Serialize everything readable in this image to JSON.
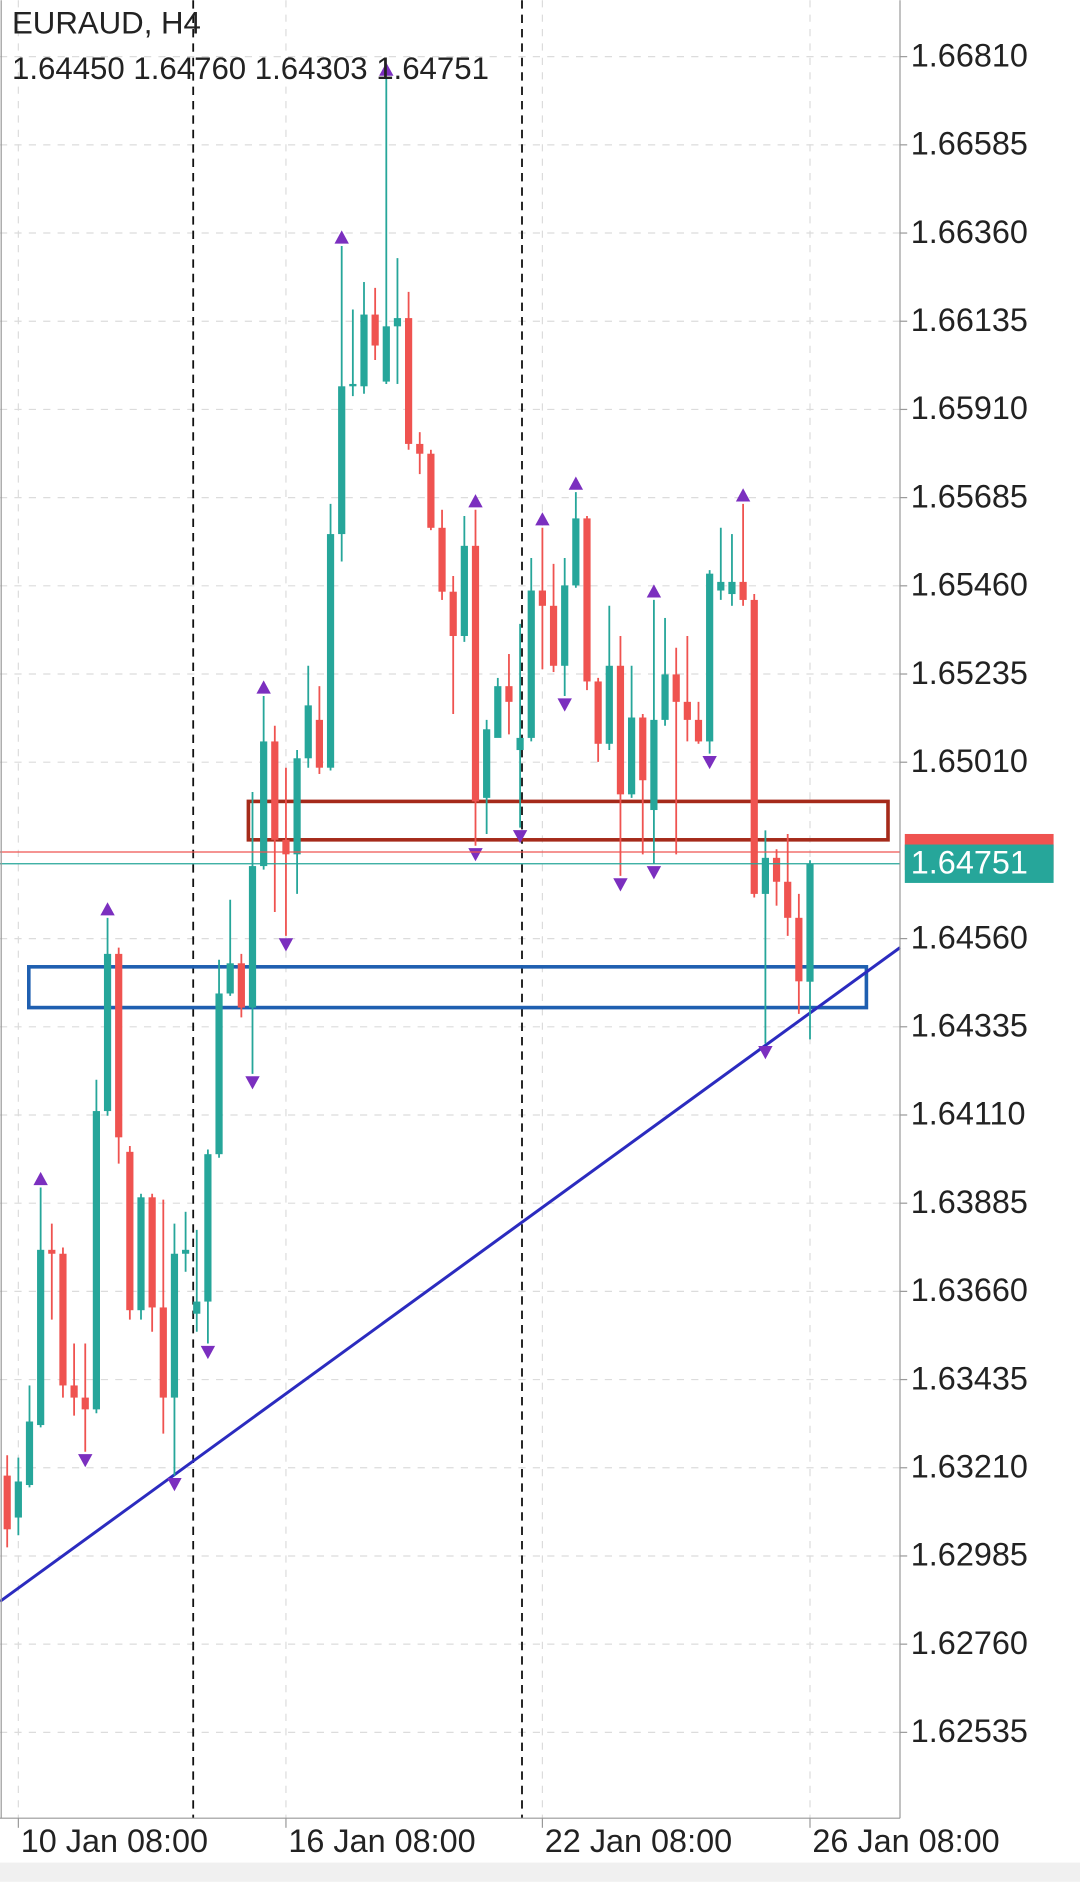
{
  "chart_data": {
    "type": "candlestick",
    "header": {
      "symbol": "EURAUD, H4",
      "ohlc": "1.64450 1.64760 1.64303 1.64751"
    },
    "price_label": "1.64751",
    "up_color": "#26a69a",
    "down_color": "#ef5350",
    "categories": [
      null,
      "10 Jan 08:00",
      null,
      null,
      null,
      null,
      null,
      null,
      null,
      null,
      null,
      null,
      null,
      null,
      null,
      null,
      null,
      null,
      null,
      null,
      null,
      null,
      null,
      null,
      null,
      "16 Jan 08:00",
      null,
      null,
      null,
      null,
      null,
      null,
      null,
      null,
      null,
      null,
      null,
      null,
      null,
      null,
      null,
      null,
      null,
      null,
      null,
      null,
      null,
      null,
      "22 Jan 08:00",
      null,
      null,
      null,
      null,
      null,
      null,
      null,
      null,
      null,
      null,
      null,
      null,
      null,
      null,
      null,
      null,
      null,
      null,
      null,
      null,
      null,
      null,
      null,
      "26 Jan 08:00"
    ],
    "open": [
      1.6319,
      1.63083,
      1.63166,
      1.63319,
      1.63766,
      1.63756,
      1.6342,
      1.63389,
      1.63359,
      1.6412,
      1.64521,
      1.64016,
      1.63612,
      1.639,
      1.63619,
      1.63389,
      1.63756,
      1.63603,
      1.63634,
      1.6401,
      1.6442,
      1.64497,
      1.64384,
      1.64745,
      1.65063,
      1.64812,
      1.64775,
      1.6502,
      1.65118,
      1.64996,
      1.65592,
      1.65969,
      1.65969,
      1.66152,
      1.65981,
      1.66122,
      1.66143,
      1.65822,
      1.65797,
      1.65608,
      1.65445,
      1.65332,
      1.65562,
      1.64919,
      1.65072,
      1.65204,
      1.65041,
      1.65072,
      1.65448,
      1.65409,
      1.65256,
      1.65461,
      1.65632,
      1.65216,
      1.65057,
      1.65256,
      1.64928,
      1.65124,
      1.64888,
      1.65118,
      1.65234,
      1.65164,
      1.65118,
      1.65063,
      1.65448,
      1.65439,
      1.6547,
      1.65424,
      1.64674,
      1.64766,
      1.64705,
      1.64613,
      1.6445
    ],
    "high": [
      1.63242,
      1.63236,
      1.6342,
      1.63925,
      1.63833,
      1.63772,
      1.63527,
      1.63527,
      1.642,
      1.64613,
      1.64537,
      1.64031,
      1.63909,
      1.63909,
      1.63894,
      1.63833,
      1.63863,
      1.63817,
      1.64022,
      1.64506,
      1.64659,
      1.64521,
      1.64934,
      1.65179,
      1.65103,
      1.64996,
      1.65041,
      1.65256,
      1.65204,
      1.65669,
      1.66327,
      1.66165,
      1.66235,
      1.6622,
      1.66755,
      1.66296,
      1.6621,
      1.65852,
      1.65807,
      1.65654,
      1.65485,
      1.65638,
      1.65654,
      1.65118,
      1.65225,
      1.65286,
      1.65363,
      1.65531,
      1.65608,
      1.65516,
      1.65531,
      1.65699,
      1.65638,
      1.65225,
      1.65409,
      1.65332,
      1.65256,
      1.65133,
      1.65424,
      1.65378,
      1.65302,
      1.65332,
      1.65164,
      1.655,
      1.65608,
      1.65592,
      1.65669,
      1.65439,
      1.64836,
      1.64788,
      1.64827,
      1.64674,
      1.6476
    ],
    "low": [
      1.63007,
      1.63038,
      1.6316,
      1.63313,
      1.63588,
      1.63389,
      1.63343,
      1.63251,
      1.63349,
      1.64108,
      1.63986,
      1.63588,
      1.63588,
      1.63557,
      1.63297,
      1.6319,
      1.6371,
      1.63557,
      1.63527,
      1.64001,
      1.64414,
      1.64359,
      1.64215,
      1.64736,
      1.64628,
      1.64567,
      1.64674,
      1.64996,
      1.6498,
      1.64989,
      1.65522,
      1.65944,
      1.6595,
      1.66036,
      1.65975,
      1.65975,
      1.65807,
      1.65745,
      1.65602,
      1.65424,
      1.65133,
      1.65317,
      1.64797,
      1.64827,
      1.65081,
      1.65081,
      1.64843,
      1.65063,
      1.65247,
      1.6524,
      1.65179,
      1.65455,
      1.65194,
      1.65011,
      1.65041,
      1.6472,
      1.64919,
      1.64775,
      1.64751,
      1.65103,
      1.64775,
      1.65063,
      1.65057,
      1.65032,
      1.65424,
      1.65409,
      1.65409,
      1.64665,
      1.64292,
      1.64644,
      1.64567,
      1.64368,
      1.64303
    ],
    "close": [
      1.63053,
      1.63175,
      1.63328,
      1.63766,
      1.63756,
      1.6342,
      1.63389,
      1.63359,
      1.6412,
      1.64521,
      1.64053,
      1.63612,
      1.639,
      1.63619,
      1.63389,
      1.63756,
      1.63766,
      1.63634,
      1.6401,
      1.6442,
      1.64497,
      1.64384,
      1.64745,
      1.65063,
      1.64812,
      1.64775,
      1.6502,
      1.65155,
      1.64996,
      1.65592,
      1.65969,
      1.65975,
      1.66152,
      1.66073,
      1.66122,
      1.66143,
      1.65822,
      1.65797,
      1.65608,
      1.65445,
      1.65332,
      1.65562,
      1.6491,
      1.65094,
      1.65204,
      1.65164,
      1.65072,
      1.65448,
      1.65409,
      1.65256,
      1.65461,
      1.65632,
      1.65216,
      1.65057,
      1.65256,
      1.64928,
      1.65124,
      1.64964,
      1.65118,
      1.65234,
      1.65164,
      1.65118,
      1.65063,
      1.65491,
      1.6547,
      1.6547,
      1.65424,
      1.64674,
      1.64766,
      1.64705,
      1.64613,
      1.64451,
      1.64751
    ],
    "ylim": [
      1.62316,
      1.66954
    ],
    "yticks": [
      {
        "value": 1.6681,
        "label": "1.66810"
      },
      {
        "value": 1.66585,
        "label": "1.66585"
      },
      {
        "value": 1.6636,
        "label": "1.66360"
      },
      {
        "value": 1.66135,
        "label": "1.66135"
      },
      {
        "value": 1.6591,
        "label": "1.65910"
      },
      {
        "value": 1.65685,
        "label": "1.65685"
      },
      {
        "value": 1.6546,
        "label": "1.65460"
      },
      {
        "value": 1.65235,
        "label": "1.65235"
      },
      {
        "value": 1.6501,
        "label": "1.65010"
      },
      {
        "value": 1.6456,
        "label": "1.64560"
      },
      {
        "value": 1.64335,
        "label": "1.64335"
      },
      {
        "value": 1.6411,
        "label": "1.64110"
      },
      {
        "value": 1.63885,
        "label": "1.63885"
      },
      {
        "value": 1.6366,
        "label": "1.63660"
      },
      {
        "value": 1.63435,
        "label": "1.63435"
      },
      {
        "value": 1.6321,
        "label": "1.63210"
      },
      {
        "value": 1.62985,
        "label": "1.62985"
      },
      {
        "value": 1.6276,
        "label": "1.62760"
      },
      {
        "value": 1.62535,
        "label": "1.62535"
      }
    ],
    "grid": true,
    "bid_line": {
      "color": "#ef5350",
      "value": 1.64781
    },
    "zones": [
      {
        "color": "#a52a1a",
        "top": 1.6491,
        "bottom": 1.64812
      },
      {
        "color": "#1f5fb0",
        "top": 1.64488,
        "bottom": 1.64384
      }
    ],
    "trendline": {
      "color": "#2b2bbf",
      "start": 1.62869,
      "end": 1.64537
    },
    "fractal_color": "#7b2fbf"
  }
}
